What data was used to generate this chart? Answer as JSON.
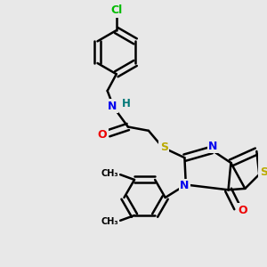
{
  "bg_color": "#e8e8e8",
  "bond_color": "#000000",
  "bond_width": 1.8,
  "atom_colors": {
    "Cl": "#00bb00",
    "N": "#0000ee",
    "O": "#ee0000",
    "S": "#bbaa00",
    "H": "#007777",
    "C": "#000000"
  },
  "font_size": 8.5,
  "fig_size": [
    3.0,
    3.0
  ],
  "dpi": 100,
  "xlim": [
    0,
    10
  ],
  "ylim": [
    0,
    10
  ]
}
